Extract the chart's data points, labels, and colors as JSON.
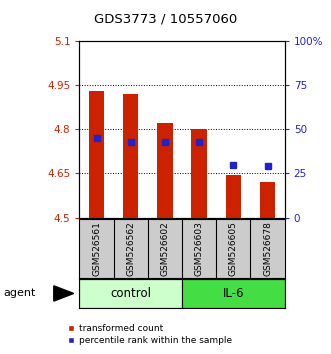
{
  "title": "GDS3773 / 10557060",
  "samples": [
    "GSM526561",
    "GSM526562",
    "GSM526602",
    "GSM526603",
    "GSM526605",
    "GSM526678"
  ],
  "transformed_counts": [
    4.93,
    4.92,
    4.82,
    4.8,
    4.645,
    4.62
  ],
  "percentile_ranks": [
    45,
    43,
    43,
    43,
    30,
    29
  ],
  "bar_bottom": 4.5,
  "y_min": 4.5,
  "y_max": 5.1,
  "y_ticks": [
    4.5,
    4.65,
    4.8,
    4.95,
    5.1
  ],
  "y_tick_labels": [
    "4.5",
    "4.65",
    "4.8",
    "4.95",
    "5.1"
  ],
  "right_y_ticks": [
    0,
    25,
    50,
    75,
    100
  ],
  "right_y_tick_labels": [
    "0",
    "25",
    "50",
    "75",
    "100%"
  ],
  "bar_color": "#cc2200",
  "dot_color": "#2222cc",
  "control_bg": "#ccffcc",
  "il6_bg": "#44dd44",
  "group_label_control": "control",
  "group_label_il6": "IL-6",
  "agent_label": "agent",
  "legend_bar_label": "transformed count",
  "legend_dot_label": "percentile rank within the sample",
  "left_tick_color": "#cc2200",
  "right_tick_color": "#2222cc",
  "sample_box_bg": "#cccccc"
}
